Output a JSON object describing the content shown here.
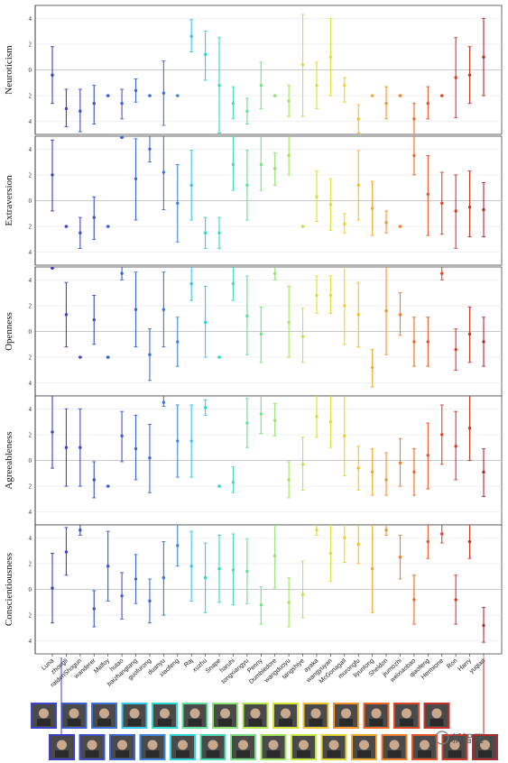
{
  "chart_data": {
    "type": "errorbar",
    "characters": [
      "Luna",
      "zhongli",
      "raidenShogun",
      "wanderer",
      "Malfoy",
      "hutao",
      "baizhangtang",
      "guofurong",
      "duanyu",
      "xiaofeng",
      "Raj",
      "xuzhu",
      "Snape",
      "haruhi",
      "tongxiangyu",
      "Penny",
      "Dumbledore",
      "wangduoyu",
      "tangshiye",
      "ayaka",
      "wangyuyan",
      "McGonagall",
      "murongfu",
      "liyunlong",
      "Sheldon",
      "jiumozhi",
      "weixiaobao",
      "qiaofeng",
      "Hermione",
      "Ron",
      "Harry",
      "yuqian"
    ],
    "colors": [
      "#3a3fc1",
      "#3a45c4",
      "#3a4bc8",
      "#3b52cb",
      "#3b58ce",
      "#3b5ed1",
      "#3c65d4",
      "#3c6bd7",
      "#3c72da",
      "#3b85dc",
      "#31c8ea",
      "#2fd2df",
      "#2fd8cf",
      "#47dcb7",
      "#62df9e",
      "#79e184",
      "#8ce46e",
      "#a0e65a",
      "#b3e74c",
      "#c5e63f",
      "#d5e237",
      "#e3d534",
      "#ecc131",
      "#f2a92e",
      "#f5932b",
      "#f47d29",
      "#ef6727",
      "#e75426",
      "#de4627",
      "#d23b2a",
      "#c4322c",
      "#b32b2c"
    ],
    "ylim": [
      -5,
      5
    ],
    "yticks": [
      4,
      2,
      0,
      -2,
      -4
    ],
    "ytick_labels": [
      "4",
      "2",
      "0",
      "2",
      "4"
    ],
    "panels": [
      {
        "ylabel": "Neuroticism",
        "series": [
          {
            "mean": -0.4,
            "low": -2.6,
            "high": 1.8
          },
          {
            "mean": -3.0,
            "low": -4.4,
            "high": -1.5
          },
          {
            "mean": -3.2,
            "low": -4.8,
            "high": -1.5
          },
          {
            "mean": -2.6,
            "low": -4.2,
            "high": -1.2
          },
          {
            "mean": -2.0,
            "low": -2.0,
            "high": -2.0
          },
          {
            "mean": -2.6,
            "low": -3.8,
            "high": -1.5
          },
          {
            "mean": -1.6,
            "low": -2.5,
            "high": -0.7
          },
          {
            "mean": -2.0,
            "low": -2.0,
            "high": -2.0
          },
          {
            "mean": -1.8,
            "low": -4.3,
            "high": 0.7
          },
          {
            "mean": -2.0,
            "low": -2.0,
            "high": -2.0
          },
          {
            "mean": 2.6,
            "low": 1.4,
            "high": 3.9
          },
          {
            "mean": 1.2,
            "low": -0.8,
            "high": 3.0
          },
          {
            "mean": -1.2,
            "low": -4.9,
            "high": 2.5
          },
          {
            "mean": -2.6,
            "low": -3.8,
            "high": -1.3
          },
          {
            "mean": -3.2,
            "low": -4.2,
            "high": -2.2
          },
          {
            "mean": -1.2,
            "low": -3.0,
            "high": 0.6
          },
          {
            "mean": -2.0,
            "low": -2.0,
            "high": -2.0
          },
          {
            "mean": -2.4,
            "low": -3.6,
            "high": -1.2
          },
          {
            "mean": 0.4,
            "low": -3.6,
            "high": 4.3
          },
          {
            "mean": -1.2,
            "low": -3.0,
            "high": 0.6
          },
          {
            "mean": 1.0,
            "low": -2.0,
            "high": 4.0
          },
          {
            "mean": -1.2,
            "low": -2.5,
            "high": -0.6
          },
          {
            "mean": -3.8,
            "low": -4.9,
            "high": -2.7
          },
          {
            "mean": -2.0,
            "low": -2.0,
            "high": -2.0
          },
          {
            "mean": -2.6,
            "low": -3.8,
            "high": -1.3
          },
          {
            "mean": -2.0,
            "low": -2.0,
            "high": -2.0
          },
          {
            "mean": -3.8,
            "low": -5.0,
            "high": -2.6
          },
          {
            "mean": -2.6,
            "low": -3.8,
            "high": -1.3
          },
          {
            "mean": -2.0,
            "low": -2.0,
            "high": -2.0
          },
          {
            "mean": -0.6,
            "low": -3.7,
            "high": 2.5
          },
          {
            "mean": -0.4,
            "low": -2.6,
            "high": 1.8
          },
          {
            "mean": 1.0,
            "low": -2.0,
            "high": 4.0
          }
        ]
      },
      {
        "ylabel": "Extraversion",
        "series": [
          {
            "mean": 2.0,
            "low": -0.8,
            "high": 4.7
          },
          {
            "mean": -2.0,
            "low": -2.0,
            "high": -2.0
          },
          {
            "mean": -2.5,
            "low": -3.7,
            "high": -1.3
          },
          {
            "mean": -1.3,
            "low": -3.0,
            "high": 0.3
          },
          {
            "mean": -2.0,
            "low": -2.0,
            "high": -2.0
          },
          {
            "mean": 4.9,
            "low": 4.9,
            "high": 4.9
          },
          {
            "mean": 1.7,
            "low": -1.5,
            "high": 4.8
          },
          {
            "mean": 4.0,
            "low": 3.0,
            "high": 5.0
          },
          {
            "mean": 2.2,
            "low": -0.7,
            "high": 5.0
          },
          {
            "mean": -0.2,
            "low": -3.2,
            "high": 2.8
          },
          {
            "mean": 1.2,
            "low": -1.5,
            "high": 3.9
          },
          {
            "mean": -2.5,
            "low": -3.7,
            "high": -1.3
          },
          {
            "mean": -2.5,
            "low": -3.7,
            "high": -1.3
          },
          {
            "mean": 2.8,
            "low": 0.8,
            "high": 5.0
          },
          {
            "mean": 1.2,
            "low": -1.5,
            "high": 3.9
          },
          {
            "mean": 2.8,
            "low": 0.8,
            "high": 5.0
          },
          {
            "mean": 2.5,
            "low": 1.2,
            "high": 3.7
          },
          {
            "mean": 3.5,
            "low": 2.0,
            "high": 5.0
          },
          {
            "mean": -2.0,
            "low": -2.0,
            "high": -2.0
          },
          {
            "mean": 0.3,
            "low": -1.6,
            "high": 2.3
          },
          {
            "mean": -0.3,
            "low": -2.3,
            "high": 1.7
          },
          {
            "mean": -1.8,
            "low": -2.5,
            "high": -1.0
          },
          {
            "mean": 1.2,
            "low": -1.5,
            "high": 3.9
          },
          {
            "mean": -0.6,
            "low": -2.7,
            "high": 1.5
          },
          {
            "mean": -1.7,
            "low": -2.5,
            "high": -0.8
          },
          {
            "mean": -2.0,
            "low": -2.0,
            "high": -2.0
          },
          {
            "mean": 3.5,
            "low": 2.0,
            "high": 5.0
          },
          {
            "mean": 0.5,
            "low": -2.7,
            "high": 3.5
          },
          {
            "mean": -0.2,
            "low": -2.6,
            "high": 2.2
          },
          {
            "mean": -0.8,
            "low": -3.7,
            "high": 2.0
          },
          {
            "mean": -0.5,
            "low": -2.8,
            "high": 2.3
          },
          {
            "mean": -0.7,
            "low": -2.8,
            "high": 1.4
          }
        ]
      },
      {
        "ylabel": "Openness",
        "series": [
          {
            "mean": 4.9,
            "low": 4.9,
            "high": 4.9
          },
          {
            "mean": 1.3,
            "low": -1.2,
            "high": 3.8
          },
          {
            "mean": -2.0,
            "low": -2.0,
            "high": -2.0
          },
          {
            "mean": 0.9,
            "low": -1.0,
            "high": 2.8
          },
          {
            "mean": -2.0,
            "low": -2.0,
            "high": -2.0
          },
          {
            "mean": 4.5,
            "low": 4.0,
            "high": 5.0
          },
          {
            "mean": 1.7,
            "low": -1.2,
            "high": 4.6
          },
          {
            "mean": -1.8,
            "low": -3.8,
            "high": 0.2
          },
          {
            "mean": 1.7,
            "low": -1.2,
            "high": 4.6
          },
          {
            "mean": -0.8,
            "low": -2.7,
            "high": 1.1
          },
          {
            "mean": 3.7,
            "low": 2.4,
            "high": 5.0
          },
          {
            "mean": 0.7,
            "low": -2.0,
            "high": 3.5
          },
          {
            "mean": -2.0,
            "low": -2.0,
            "high": -2.0
          },
          {
            "mean": 3.7,
            "low": 2.4,
            "high": 5.0
          },
          {
            "mean": 1.2,
            "low": -1.8,
            "high": 4.3
          },
          {
            "mean": -0.2,
            "low": -2.4,
            "high": 1.9
          },
          {
            "mean": 4.5,
            "low": 4.0,
            "high": 5.0
          },
          {
            "mean": 0.7,
            "low": -2.0,
            "high": 3.5
          },
          {
            "mean": -0.4,
            "low": -2.4,
            "high": 1.8
          },
          {
            "mean": 2.8,
            "low": 1.4,
            "high": 4.3
          },
          {
            "mean": 2.8,
            "low": 1.4,
            "high": 4.3
          },
          {
            "mean": 2.0,
            "low": -1.0,
            "high": 5.0
          },
          {
            "mean": 1.3,
            "low": -1.2,
            "high": 3.8
          },
          {
            "mean": -2.8,
            "low": -4.3,
            "high": -1.4
          },
          {
            "mean": 1.6,
            "low": -1.8,
            "high": 5.0
          },
          {
            "mean": 1.3,
            "low": -0.3,
            "high": 3.0
          },
          {
            "mean": -0.8,
            "low": -2.7,
            "high": 1.1
          },
          {
            "mean": -0.8,
            "low": -2.7,
            "high": 1.1
          },
          {
            "mean": 4.5,
            "low": 4.0,
            "high": 5.0
          },
          {
            "mean": -1.4,
            "low": -3.0,
            "high": 0.2
          },
          {
            "mean": -0.2,
            "low": -2.4,
            "high": 1.9
          },
          {
            "mean": -0.8,
            "low": -2.7,
            "high": 1.1
          }
        ]
      },
      {
        "ylabel": "Agreeableness",
        "series": [
          {
            "mean": 2.2,
            "low": -0.6,
            "high": 5.0
          },
          {
            "mean": 1.0,
            "low": -2.0,
            "high": 4.0
          },
          {
            "mean": 1.0,
            "low": -2.0,
            "high": 4.0
          },
          {
            "mean": -1.5,
            "low": -2.9,
            "high": -0.1
          },
          {
            "mean": -2.0,
            "low": -2.0,
            "high": -2.0
          },
          {
            "mean": 1.9,
            "low": -0.1,
            "high": 3.8
          },
          {
            "mean": 0.9,
            "low": -1.5,
            "high": 3.5
          },
          {
            "mean": 0.2,
            "low": -2.5,
            "high": 2.8
          },
          {
            "mean": 4.5,
            "low": 4.2,
            "high": 5.0
          },
          {
            "mean": 1.5,
            "low": -1.3,
            "high": 4.3
          },
          {
            "mean": 1.5,
            "low": -1.3,
            "high": 4.3
          },
          {
            "mean": 4.1,
            "low": 3.5,
            "high": 4.7
          },
          {
            "mean": -2.0,
            "low": -2.0,
            "high": -2.0
          },
          {
            "mean": -1.7,
            "low": -2.5,
            "high": -0.5
          },
          {
            "mean": 2.9,
            "low": 1.0,
            "high": 4.8
          },
          {
            "mean": 3.6,
            "low": 2.1,
            "high": 5.0
          },
          {
            "mean": 3.1,
            "low": 1.9,
            "high": 4.4
          },
          {
            "mean": -1.5,
            "low": -2.9,
            "high": -0.1
          },
          {
            "mean": -0.3,
            "low": -2.3,
            "high": 1.8
          },
          {
            "mean": 3.4,
            "low": 1.8,
            "high": 5.0
          },
          {
            "mean": 3.0,
            "low": 1.0,
            "high": 5.0
          },
          {
            "mean": 1.9,
            "low": -1.2,
            "high": 5.0
          },
          {
            "mean": -0.6,
            "low": -2.3,
            "high": 1.1
          },
          {
            "mean": -0.9,
            "low": -2.7,
            "high": 0.9
          },
          {
            "mean": -1.5,
            "low": -2.7,
            "high": 0.6
          },
          {
            "mean": -0.2,
            "low": -2.0,
            "high": 1.7
          },
          {
            "mean": -0.9,
            "low": -2.7,
            "high": 0.9
          },
          {
            "mean": 0.4,
            "low": -2.2,
            "high": 2.9
          },
          {
            "mean": 2.0,
            "low": -0.3,
            "high": 4.3
          },
          {
            "mean": 1.1,
            "low": -1.5,
            "high": 3.8
          },
          {
            "mean": 2.5,
            "low": 0.0,
            "high": 5.0
          },
          {
            "mean": -0.9,
            "low": -2.8,
            "high": 0.9
          }
        ]
      },
      {
        "ylabel": "Conscientiousness",
        "series": [
          {
            "mean": 0.1,
            "low": -2.6,
            "high": 2.8
          },
          {
            "mean": 2.9,
            "low": 1.1,
            "high": 4.8
          },
          {
            "mean": 4.6,
            "low": 4.2,
            "high": 5.0
          },
          {
            "mean": -1.5,
            "low": -2.9,
            "high": -0.1
          },
          {
            "mean": 1.8,
            "low": -0.9,
            "high": 4.5
          },
          {
            "mean": -0.5,
            "low": -2.3,
            "high": 1.3
          },
          {
            "mean": 0.8,
            "low": -1.1,
            "high": 2.7
          },
          {
            "mean": -0.9,
            "low": -2.6,
            "high": 0.8
          },
          {
            "mean": 0.9,
            "low": -2.0,
            "high": 3.7
          },
          {
            "mean": 3.4,
            "low": 1.8,
            "high": 5.0
          },
          {
            "mean": 1.8,
            "low": -0.9,
            "high": 4.5
          },
          {
            "mean": 0.9,
            "low": -1.8,
            "high": 3.6
          },
          {
            "mean": 1.6,
            "low": -1.0,
            "high": 4.2
          },
          {
            "mean": 1.5,
            "low": -1.2,
            "high": 4.3
          },
          {
            "mean": 1.4,
            "low": -1.1,
            "high": 3.9
          },
          {
            "mean": -1.2,
            "low": -2.7,
            "high": 0.2
          },
          {
            "mean": 2.6,
            "low": 0.1,
            "high": 5.0
          },
          {
            "mean": -1.0,
            "low": -2.9,
            "high": 0.9
          },
          {
            "mean": -0.4,
            "low": -2.2,
            "high": 2.2
          },
          {
            "mean": 4.6,
            "low": 4.2,
            "high": 5.0
          },
          {
            "mean": 2.8,
            "low": 0.6,
            "high": 5.0
          },
          {
            "mean": 4.0,
            "low": 2.1,
            "high": 5.0
          },
          {
            "mean": 3.5,
            "low": 2.0,
            "high": 5.0
          },
          {
            "mean": 1.6,
            "low": -1.8,
            "high": 5.0
          },
          {
            "mean": 4.6,
            "low": 4.2,
            "high": 5.0
          },
          {
            "mean": 2.5,
            "low": 0.8,
            "high": 4.2
          },
          {
            "mean": -0.8,
            "low": -2.7,
            "high": 1.1
          },
          {
            "mean": 3.7,
            "low": 2.4,
            "high": 5.0
          },
          {
            "mean": 4.3,
            "low": 3.6,
            "high": 5.0
          },
          {
            "mean": -0.8,
            "low": -2.7,
            "high": 1.1
          },
          {
            "mean": 3.7,
            "low": 2.4,
            "high": 5.0
          },
          {
            "mean": -2.8,
            "low": -4.1,
            "high": -1.4
          }
        ]
      }
    ]
  },
  "portrait_rows": [
    {
      "colors": [
        "#3b47c6",
        "#3c60d2",
        "#3c72da",
        "#31c8ea",
        "#2fd8cf",
        "#62df9e",
        "#8ce46e",
        "#b3e74c",
        "#d5e237",
        "#ecc131",
        "#f5932b",
        "#ef6727",
        "#de4627",
        "#c4322c"
      ]
    },
    {
      "colors": [
        "#3a3fc1",
        "#3b52cb",
        "#3c65d4",
        "#3b85dc",
        "#2fd2df",
        "#47dcb7",
        "#79e184",
        "#a0e65a",
        "#c5e63f",
        "#e3d534",
        "#f2a92e",
        "#f47d29",
        "#e75426",
        "#d23b2a",
        "#b32b2c"
      ]
    }
  ],
  "watermark": "新智元"
}
